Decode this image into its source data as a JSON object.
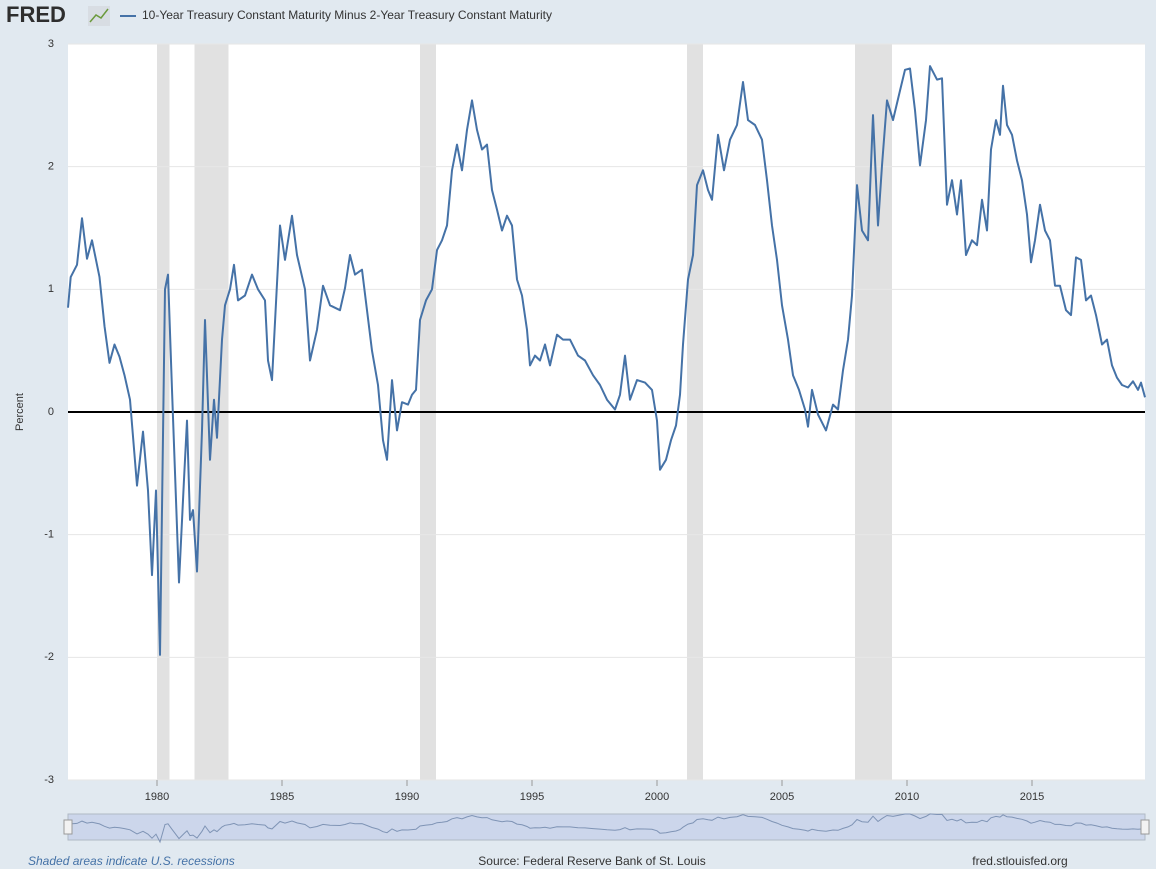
{
  "chart_data": {
    "type": "line",
    "logo": "FRED",
    "ylabel": "Percent",
    "footer_left": "Shaded areas indicate U.S. recessions",
    "footer_center": "Source: Federal Reserve Bank of St. Louis",
    "footer_right": "fred.stlouisfed.org",
    "xlim": [
      1976.44,
      2019.52
    ],
    "ylim": [
      -3,
      3
    ],
    "xticks": [
      1980,
      1985,
      1990,
      1995,
      2000,
      2005,
      2010,
      2015
    ],
    "yticks": [
      -3,
      -2,
      -1,
      0,
      1,
      2,
      3
    ],
    "grid": true,
    "recessions": [
      [
        1980.0,
        1980.5
      ],
      [
        1981.5,
        1982.86
      ],
      [
        1990.52,
        1991.16
      ],
      [
        2001.2,
        2001.84
      ],
      [
        2007.92,
        2009.4
      ]
    ],
    "recession_color": "#e1e1e1",
    "x": [
      1976.44,
      1976.55,
      1976.8,
      1977.0,
      1977.2,
      1977.4,
      1977.7,
      1977.9,
      1978.1,
      1978.3,
      1978.5,
      1978.7,
      1978.92,
      1979.2,
      1979.44,
      1979.64,
      1979.8,
      1979.96,
      1980.12,
      1980.32,
      1980.44,
      1980.6,
      1980.88,
      1981.08,
      1981.2,
      1981.32,
      1981.44,
      1981.6,
      1981.8,
      1981.92,
      1982.12,
      1982.28,
      1982.4,
      1982.6,
      1982.72,
      1982.92,
      1983.08,
      1983.24,
      1983.52,
      1983.8,
      1984.04,
      1984.32,
      1984.44,
      1984.6,
      1984.92,
      1985.12,
      1985.4,
      1985.6,
      1985.92,
      1986.12,
      1986.4,
      1986.64,
      1986.92,
      1987.32,
      1987.52,
      1987.72,
      1987.92,
      1988.2,
      1988.4,
      1988.6,
      1988.84,
      1989.04,
      1989.2,
      1989.4,
      1989.6,
      1989.8,
      1990.04,
      1990.2,
      1990.36,
      1990.52,
      1990.76,
      1991.0,
      1991.2,
      1991.4,
      1991.6,
      1991.8,
      1992.0,
      1992.2,
      1992.4,
      1992.6,
      1992.8,
      1993.0,
      1993.2,
      1993.4,
      1993.6,
      1993.8,
      1994.0,
      1994.2,
      1994.4,
      1994.6,
      1994.8,
      1994.92,
      1995.12,
      1995.32,
      1995.52,
      1995.72,
      1996.0,
      1996.24,
      1996.52,
      1996.84,
      1997.12,
      1997.44,
      1997.72,
      1998.0,
      1998.32,
      1998.52,
      1998.72,
      1998.92,
      1999.2,
      1999.52,
      1999.8,
      2000.0,
      2000.12,
      2000.36,
      2000.56,
      2000.76,
      2000.92,
      2001.04,
      2001.24,
      2001.44,
      2001.6,
      2001.84,
      2002.04,
      2002.2,
      2002.44,
      2002.68,
      2002.92,
      2003.2,
      2003.44,
      2003.64,
      2003.92,
      2004.2,
      2004.4,
      2004.6,
      2004.8,
      2005.0,
      2005.24,
      2005.44,
      2005.68,
      2005.92,
      2006.04,
      2006.2,
      2006.44,
      2006.76,
      2007.04,
      2007.24,
      2007.44,
      2007.64,
      2007.8,
      2008.0,
      2008.2,
      2008.44,
      2008.64,
      2008.84,
      2009.0,
      2009.2,
      2009.44,
      2009.72,
      2009.92,
      2010.12,
      2010.32,
      2010.52,
      2010.76,
      2010.92,
      2011.2,
      2011.4,
      2011.6,
      2011.8,
      2012.0,
      2012.16,
      2012.36,
      2012.6,
      2012.8,
      2013.0,
      2013.2,
      2013.36,
      2013.56,
      2013.72,
      2013.84,
      2014.0,
      2014.2,
      2014.4,
      2014.6,
      2014.8,
      2014.96,
      2015.12,
      2015.32,
      2015.52,
      2015.72,
      2015.92,
      2016.12,
      2016.36,
      2016.56,
      2016.76,
      2016.96,
      2017.16,
      2017.36,
      2017.56,
      2017.8,
      2018.0,
      2018.2,
      2018.4,
      2018.6,
      2018.84,
      2019.04,
      2019.24,
      2019.36,
      2019.52
    ],
    "series": [
      {
        "name": "10-Year Treasury Constant Maturity Minus 2-Year Treasury Constant Maturity",
        "color": "#4572a7",
        "values": [
          0.85,
          1.1,
          1.2,
          1.58,
          1.25,
          1.4,
          1.1,
          0.7,
          0.4,
          0.55,
          0.45,
          0.3,
          0.1,
          -0.6,
          -0.16,
          -0.64,
          -1.33,
          -0.64,
          -1.98,
          1.0,
          1.12,
          0.18,
          -1.39,
          -0.55,
          -0.07,
          -0.88,
          -0.8,
          -1.3,
          -0.15,
          0.75,
          -0.39,
          0.1,
          -0.21,
          0.59,
          0.87,
          1.0,
          1.2,
          0.91,
          0.95,
          1.12,
          1.0,
          0.91,
          0.42,
          0.26,
          1.52,
          1.24,
          1.6,
          1.28,
          1.0,
          0.42,
          0.67,
          1.03,
          0.87,
          0.83,
          1.01,
          1.28,
          1.12,
          1.16,
          0.83,
          0.5,
          0.22,
          -0.23,
          -0.39,
          0.26,
          -0.15,
          0.08,
          0.06,
          0.14,
          0.18,
          0.75,
          0.91,
          1.0,
          1.32,
          1.4,
          1.52,
          1.97,
          2.18,
          1.97,
          2.3,
          2.54,
          2.3,
          2.14,
          2.18,
          1.81,
          1.65,
          1.48,
          1.6,
          1.52,
          1.08,
          0.95,
          0.67,
          0.38,
          0.46,
          0.42,
          0.55,
          0.38,
          0.63,
          0.59,
          0.59,
          0.46,
          0.42,
          0.3,
          0.22,
          0.1,
          0.02,
          0.14,
          0.46,
          0.1,
          0.26,
          0.24,
          0.18,
          -0.07,
          -0.47,
          -0.39,
          -0.23,
          -0.11,
          0.14,
          0.55,
          1.08,
          1.28,
          1.85,
          1.97,
          1.81,
          1.73,
          2.26,
          1.97,
          2.22,
          2.34,
          2.69,
          2.38,
          2.34,
          2.22,
          1.89,
          1.52,
          1.24,
          0.87,
          0.59,
          0.3,
          0.18,
          0.02,
          -0.12,
          0.18,
          -0.02,
          -0.15,
          0.06,
          0.02,
          0.34,
          0.59,
          0.95,
          1.85,
          1.48,
          1.4,
          2.42,
          1.52,
          2.01,
          2.54,
          2.38,
          2.62,
          2.79,
          2.8,
          2.46,
          2.01,
          2.38,
          2.82,
          2.71,
          2.72,
          1.69,
          1.89,
          1.61,
          1.89,
          1.28,
          1.4,
          1.36,
          1.73,
          1.48,
          2.14,
          2.38,
          2.26,
          2.66,
          2.34,
          2.26,
          2.05,
          1.89,
          1.61,
          1.22,
          1.4,
          1.69,
          1.48,
          1.4,
          1.03,
          1.03,
          0.83,
          0.79,
          1.26,
          1.24,
          0.91,
          0.95,
          0.79,
          0.55,
          0.59,
          0.38,
          0.28,
          0.22,
          0.2,
          0.25,
          0.18,
          0.24,
          0.12
        ]
      }
    ]
  }
}
